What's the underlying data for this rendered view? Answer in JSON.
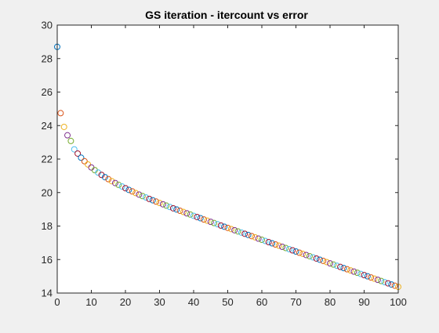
{
  "chart_data": {
    "type": "scatter",
    "title": "GS iteration - itercount vs error",
    "xlabel": "",
    "ylabel": "",
    "xlim": [
      0,
      100
    ],
    "ylim": [
      14,
      30
    ],
    "xticks": [
      0,
      10,
      20,
      30,
      40,
      50,
      60,
      70,
      80,
      90,
      100
    ],
    "yticks": [
      14,
      16,
      18,
      20,
      22,
      24,
      26,
      28,
      30
    ],
    "grid": false,
    "legend": "none",
    "marker": "open-circle",
    "colors": [
      "#0072bd",
      "#d95319",
      "#edb120",
      "#7e2f8e",
      "#77ac30",
      "#4dbeee",
      "#a2142f"
    ],
    "x": [
      0,
      1,
      2,
      3,
      4,
      5,
      6,
      7,
      8,
      9,
      10,
      11,
      12,
      13,
      14,
      15,
      16,
      17,
      18,
      19,
      20,
      21,
      22,
      23,
      24,
      25,
      26,
      27,
      28,
      29,
      30,
      31,
      32,
      33,
      34,
      35,
      36,
      37,
      38,
      39,
      40,
      41,
      42,
      43,
      44,
      45,
      46,
      47,
      48,
      49,
      50,
      51,
      52,
      53,
      54,
      55,
      56,
      57,
      58,
      59,
      60,
      61,
      62,
      63,
      64,
      65,
      66,
      67,
      68,
      69,
      70,
      71,
      72,
      73,
      74,
      75,
      76,
      77,
      78,
      79,
      80,
      81,
      82,
      83,
      84,
      85,
      86,
      87,
      88,
      89,
      90,
      91,
      92,
      93,
      94,
      95,
      96,
      97,
      98,
      99,
      100
    ],
    "y": [
      28.7,
      24.74,
      23.92,
      23.42,
      23.08,
      22.58,
      22.33,
      22.08,
      21.87,
      21.68,
      21.5,
      21.34,
      21.19,
      21.05,
      20.92,
      20.8,
      20.68,
      20.57,
      20.46,
      20.36,
      20.26,
      20.16,
      20.07,
      19.97,
      19.88,
      19.79,
      19.71,
      19.62,
      19.54,
      19.46,
      19.38,
      19.3,
      19.22,
      19.14,
      19.06,
      18.99,
      18.91,
      18.84,
      18.76,
      18.69,
      18.61,
      18.54,
      18.47,
      18.39,
      18.32,
      18.25,
      18.18,
      18.11,
      18.03,
      17.96,
      17.89,
      17.82,
      17.75,
      17.68,
      17.61,
      17.54,
      17.47,
      17.4,
      17.33,
      17.25,
      17.18,
      17.11,
      17.04,
      16.97,
      16.9,
      16.83,
      16.76,
      16.69,
      16.62,
      16.55,
      16.48,
      16.41,
      16.34,
      16.27,
      16.2,
      16.13,
      16.06,
      15.99,
      15.92,
      15.85,
      15.77,
      15.7,
      15.63,
      15.56,
      15.49,
      15.42,
      15.35,
      15.28,
      15.21,
      15.14,
      15.07,
      15.0,
      14.93,
      14.86,
      14.79,
      14.72,
      14.65,
      14.58,
      14.51,
      14.44,
      14.37
    ]
  }
}
